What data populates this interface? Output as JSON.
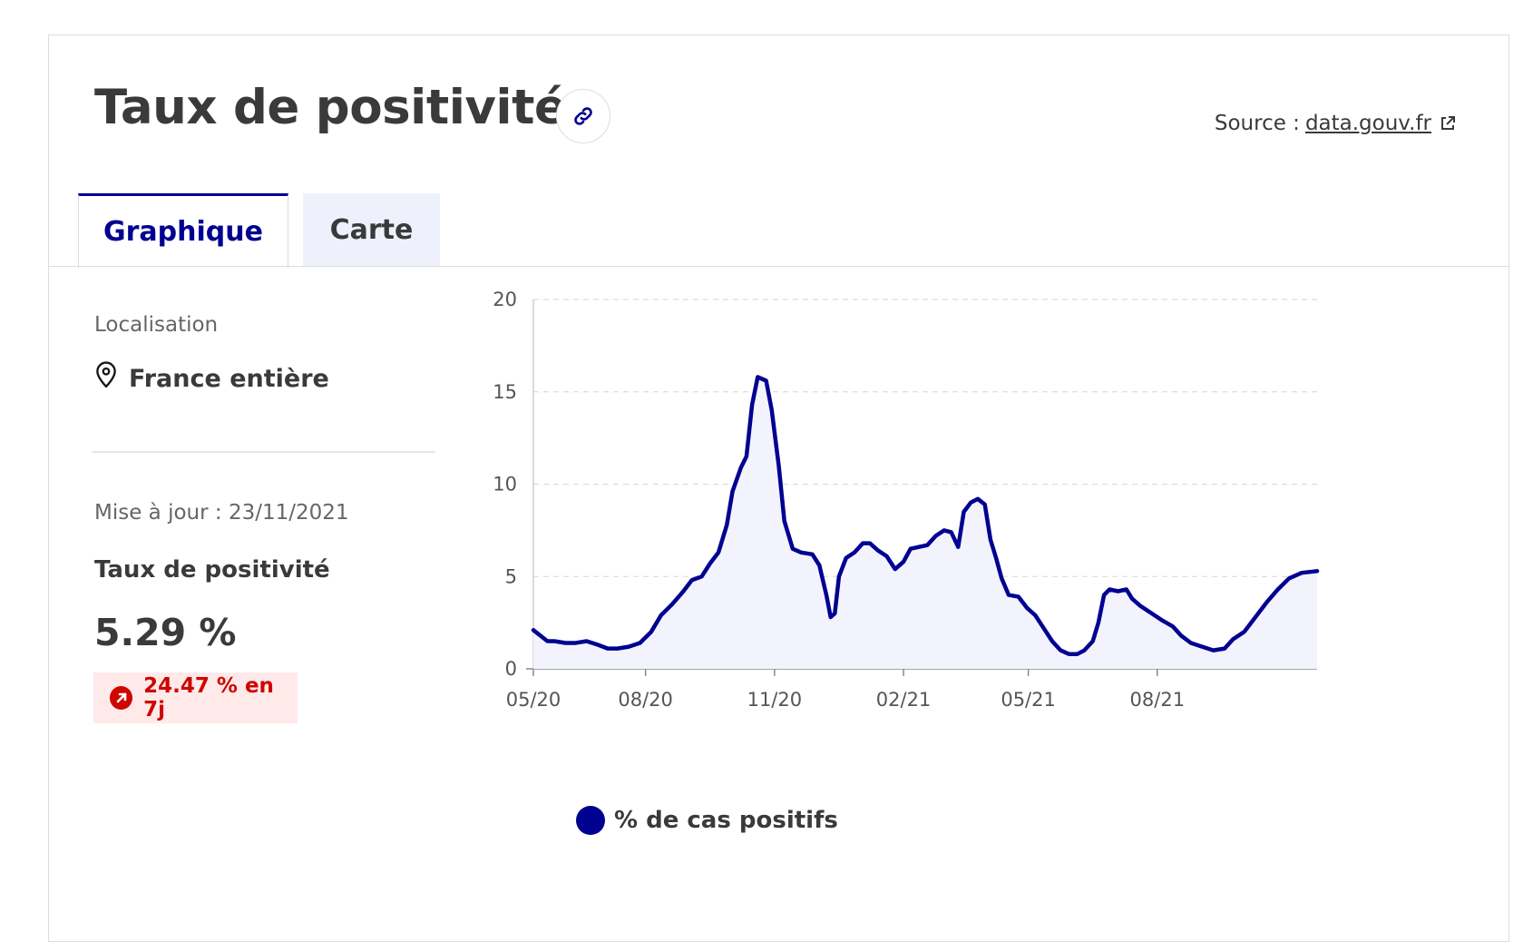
{
  "header": {
    "title": "Taux de positivité",
    "source_label": "Source :",
    "source_link": "data.gouv.fr"
  },
  "tabs": [
    {
      "label": "Graphique",
      "active": true
    },
    {
      "label": "Carte",
      "active": false
    }
  ],
  "sidebar": {
    "location_label": "Localisation",
    "location_value": "France entière",
    "update": "Mise à jour : 23/11/2021",
    "metric_label": "Taux de positivité",
    "metric_value": "5.29 %",
    "trend": "24.47 % en 7j"
  },
  "colors": {
    "accent": "#000091",
    "fill": "#f3f3fd",
    "trend_red": "#ce0500",
    "trend_bg": "#ffe9e9",
    "tab_inactive_bg": "#eef1fb"
  },
  "legend": {
    "label": "% de cas positifs"
  },
  "icons": [
    "link-icon",
    "external-link-icon",
    "map-pin-icon",
    "arrow-up-right-icon"
  ],
  "chart_data": {
    "type": "area",
    "grid": true,
    "x_ticks": [
      "05/20",
      "08/20",
      "11/20",
      "02/21",
      "05/21",
      "08/21"
    ],
    "y_ticks": [
      0,
      5,
      10,
      15,
      20
    ],
    "ylim": [
      0,
      20
    ],
    "x_range": [
      "2020-05-13",
      "2021-11-23"
    ],
    "series": [
      {
        "name": "% de cas positifs",
        "color": "#000091",
        "points": [
          [
            "2020-05-13",
            2.1
          ],
          [
            "2020-05-18",
            1.8
          ],
          [
            "2020-05-23",
            1.5
          ],
          [
            "2020-05-28",
            1.5
          ],
          [
            "2020-06-05",
            1.4
          ],
          [
            "2020-06-12",
            1.4
          ],
          [
            "2020-06-20",
            1.5
          ],
          [
            "2020-06-28",
            1.3
          ],
          [
            "2020-07-05",
            1.1
          ],
          [
            "2020-07-12",
            1.1
          ],
          [
            "2020-07-20",
            1.2
          ],
          [
            "2020-07-28",
            1.4
          ],
          [
            "2020-08-05",
            2.0
          ],
          [
            "2020-08-12",
            2.9
          ],
          [
            "2020-08-20",
            3.5
          ],
          [
            "2020-08-28",
            4.2
          ],
          [
            "2020-09-03",
            4.8
          ],
          [
            "2020-09-10",
            5.0
          ],
          [
            "2020-09-16",
            5.7
          ],
          [
            "2020-09-22",
            6.3
          ],
          [
            "2020-09-28",
            7.8
          ],
          [
            "2020-10-02",
            9.6
          ],
          [
            "2020-10-08",
            10.9
          ],
          [
            "2020-10-12",
            11.5
          ],
          [
            "2020-10-16",
            14.3
          ],
          [
            "2020-10-20",
            15.8
          ],
          [
            "2020-10-26",
            15.6
          ],
          [
            "2020-10-30",
            14.0
          ],
          [
            "2020-11-04",
            11.0
          ],
          [
            "2020-11-08",
            8.0
          ],
          [
            "2020-11-14",
            6.5
          ],
          [
            "2020-11-20",
            6.3
          ],
          [
            "2020-11-28",
            6.2
          ],
          [
            "2020-12-03",
            5.6
          ],
          [
            "2020-12-08",
            4.0
          ],
          [
            "2020-12-11",
            2.8
          ],
          [
            "2020-12-14",
            3.0
          ],
          [
            "2020-12-17",
            5.0
          ],
          [
            "2020-12-22",
            6.0
          ],
          [
            "2020-12-28",
            6.3
          ],
          [
            "2021-01-03",
            6.8
          ],
          [
            "2021-01-08",
            6.8
          ],
          [
            "2021-01-14",
            6.4
          ],
          [
            "2021-01-20",
            6.1
          ],
          [
            "2021-01-26",
            5.4
          ],
          [
            "2021-02-01",
            5.8
          ],
          [
            "2021-02-06",
            6.5
          ],
          [
            "2021-02-12",
            6.6
          ],
          [
            "2021-02-18",
            6.7
          ],
          [
            "2021-02-24",
            7.2
          ],
          [
            "2021-03-02",
            7.5
          ],
          [
            "2021-03-07",
            7.4
          ],
          [
            "2021-03-12",
            6.6
          ],
          [
            "2021-03-16",
            8.5
          ],
          [
            "2021-03-21",
            9.0
          ],
          [
            "2021-03-26",
            9.2
          ],
          [
            "2021-03-31",
            8.9
          ],
          [
            "2021-04-04",
            7.0
          ],
          [
            "2021-04-08",
            6.0
          ],
          [
            "2021-04-12",
            4.9
          ],
          [
            "2021-04-17",
            4.0
          ],
          [
            "2021-04-24",
            3.9
          ],
          [
            "2021-04-30",
            3.3
          ],
          [
            "2021-05-06",
            2.9
          ],
          [
            "2021-05-12",
            2.2
          ],
          [
            "2021-05-18",
            1.5
          ],
          [
            "2021-05-24",
            1.0
          ],
          [
            "2021-05-30",
            0.8
          ],
          [
            "2021-06-05",
            0.8
          ],
          [
            "2021-06-10",
            1.0
          ],
          [
            "2021-06-16",
            1.5
          ],
          [
            "2021-06-20",
            2.5
          ],
          [
            "2021-06-24",
            4.0
          ],
          [
            "2021-06-28",
            4.3
          ],
          [
            "2021-07-04",
            4.2
          ],
          [
            "2021-07-10",
            4.3
          ],
          [
            "2021-07-14",
            3.8
          ],
          [
            "2021-07-20",
            3.4
          ],
          [
            "2021-07-28",
            3.0
          ],
          [
            "2021-08-05",
            2.6
          ],
          [
            "2021-08-12",
            2.3
          ],
          [
            "2021-08-18",
            1.8
          ],
          [
            "2021-08-25",
            1.4
          ],
          [
            "2021-09-02",
            1.2
          ],
          [
            "2021-09-10",
            1.0
          ],
          [
            "2021-09-18",
            1.1
          ],
          [
            "2021-09-24",
            1.6
          ],
          [
            "2021-10-02",
            2.0
          ],
          [
            "2021-10-10",
            2.8
          ],
          [
            "2021-10-18",
            3.6
          ],
          [
            "2021-10-26",
            4.3
          ],
          [
            "2021-11-03",
            4.9
          ],
          [
            "2021-11-12",
            5.2
          ],
          [
            "2021-11-23",
            5.29
          ]
        ]
      }
    ]
  }
}
